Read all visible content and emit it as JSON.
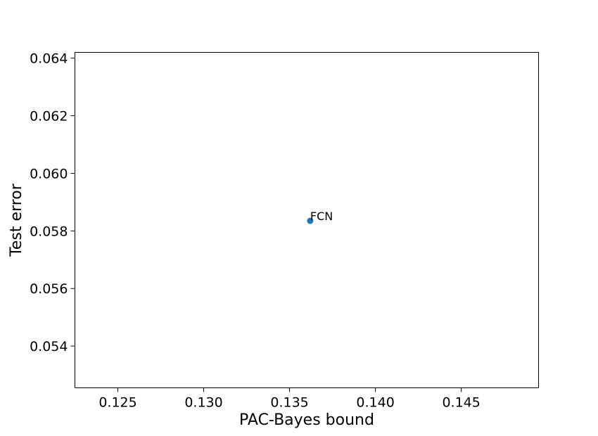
{
  "chart_data": {
    "type": "scatter",
    "title": "",
    "xlabel": "PAC-Bayes bound",
    "ylabel": "Test error",
    "xlim": [
      0.1225,
      0.1495
    ],
    "ylim": [
      0.05255,
      0.0642
    ],
    "x_ticks": [
      0.125,
      0.13,
      0.135,
      0.14,
      0.145
    ],
    "x_tick_labels": [
      "0.125",
      "0.130",
      "0.135",
      "0.140",
      "0.145"
    ],
    "y_ticks": [
      0.054,
      0.056,
      0.058,
      0.06,
      0.062,
      0.064
    ],
    "y_tick_labels": [
      "0.054",
      "0.056",
      "0.058",
      "0.060",
      "0.062",
      "0.064"
    ],
    "grid": false,
    "legend": "none",
    "point_color": "#1f77b4",
    "points": [
      {
        "x": 0.1362,
        "y": 0.05835,
        "label": "FCN"
      }
    ]
  }
}
